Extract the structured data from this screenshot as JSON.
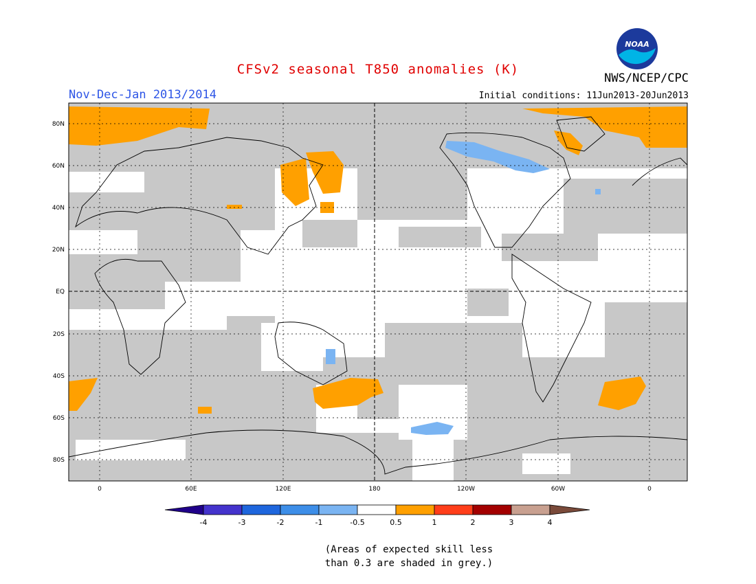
{
  "title": "CFSv2 seasonal T850 anomalies (K)",
  "agency": "NWS/NCEP/CPC",
  "period": "Nov-Dec-Jan 2013/2014",
  "initial_conditions": "Initial conditions: 11Jun2013-20Jun2013",
  "note_line1": "(Areas of expected skill less",
  "note_line2": "than 0.3 are shaded in grey.)",
  "logo_text": "NOAA",
  "map": {
    "lon_labels": [
      "0",
      "60E",
      "120E",
      "180",
      "120W",
      "60W",
      "0"
    ],
    "lat_labels": [
      "80N",
      "60N",
      "40N",
      "20N",
      "EQ",
      "20S",
      "40S",
      "60S",
      "80S"
    ]
  },
  "colorbar": {
    "labels": [
      "-4",
      "-3",
      "-2",
      "-1",
      "-0.5",
      "0.5",
      "1",
      "2",
      "3",
      "4"
    ],
    "colors": [
      "#20008a",
      "#4433cc",
      "#1e66dd",
      "#3d8ee8",
      "#7ab4f2",
      "#ffffff",
      "#ffa000",
      "#ff3e1a",
      "#a30000",
      "#c8a090",
      "#7a4a3a"
    ]
  },
  "colors": {
    "grey": "#c8c8c8",
    "orange": "#ffa000",
    "blue": "#7ab4f2"
  }
}
